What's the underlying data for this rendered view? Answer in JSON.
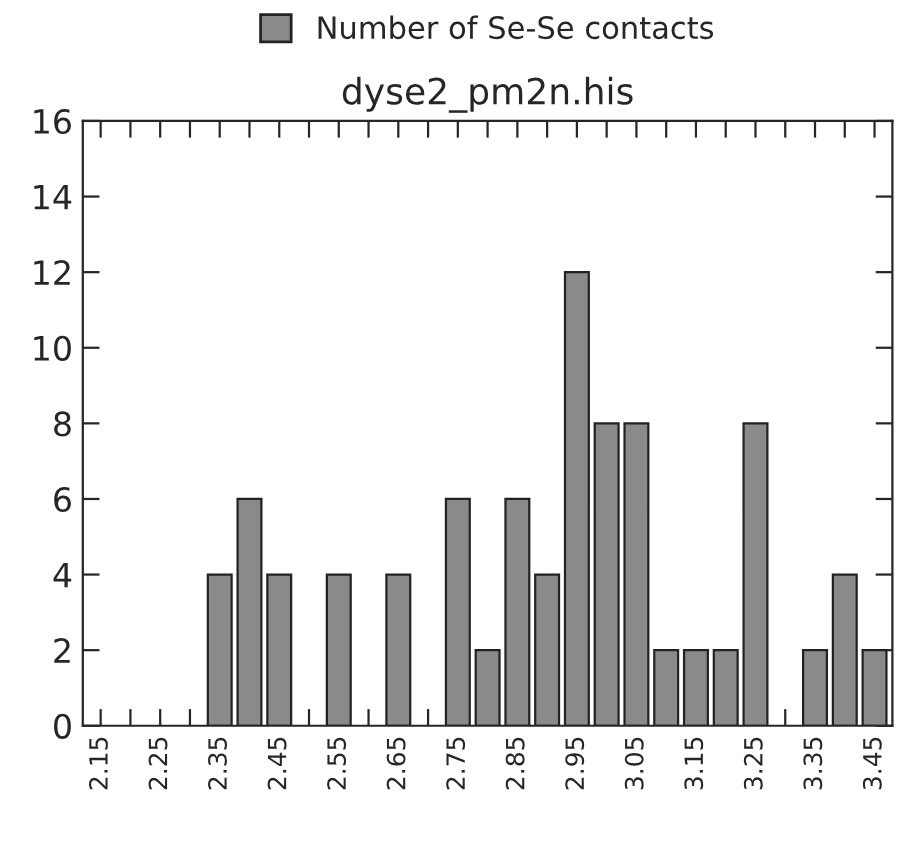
{
  "chart_data": {
    "type": "bar",
    "title": "dyse2_pm2n.his",
    "categories": [
      "2.15",
      null,
      "2.25",
      null,
      "2.35",
      null,
      "2.45",
      null,
      "2.55",
      null,
      "2.65",
      null,
      "2.75",
      null,
      "2.85",
      null,
      "2.95",
      null,
      "3.05",
      null,
      "3.15",
      null,
      "3.25",
      null,
      "3.35",
      null,
      "3.45"
    ],
    "series": [
      {
        "name": "Number of Se-Se contacts",
        "color": "#8a8a8a",
        "values": [
          0,
          0,
          0,
          0,
          4,
          6,
          4,
          0,
          4,
          0,
          4,
          0,
          6,
          2,
          6,
          4,
          12,
          8,
          8,
          2,
          2,
          2,
          8,
          0,
          2,
          4,
          2
        ]
      }
    ],
    "ylim": [
      0,
      16
    ],
    "yticks": [
      0,
      2,
      4,
      6,
      8,
      10,
      12,
      14,
      16
    ],
    "grid": false,
    "legend": "top"
  }
}
